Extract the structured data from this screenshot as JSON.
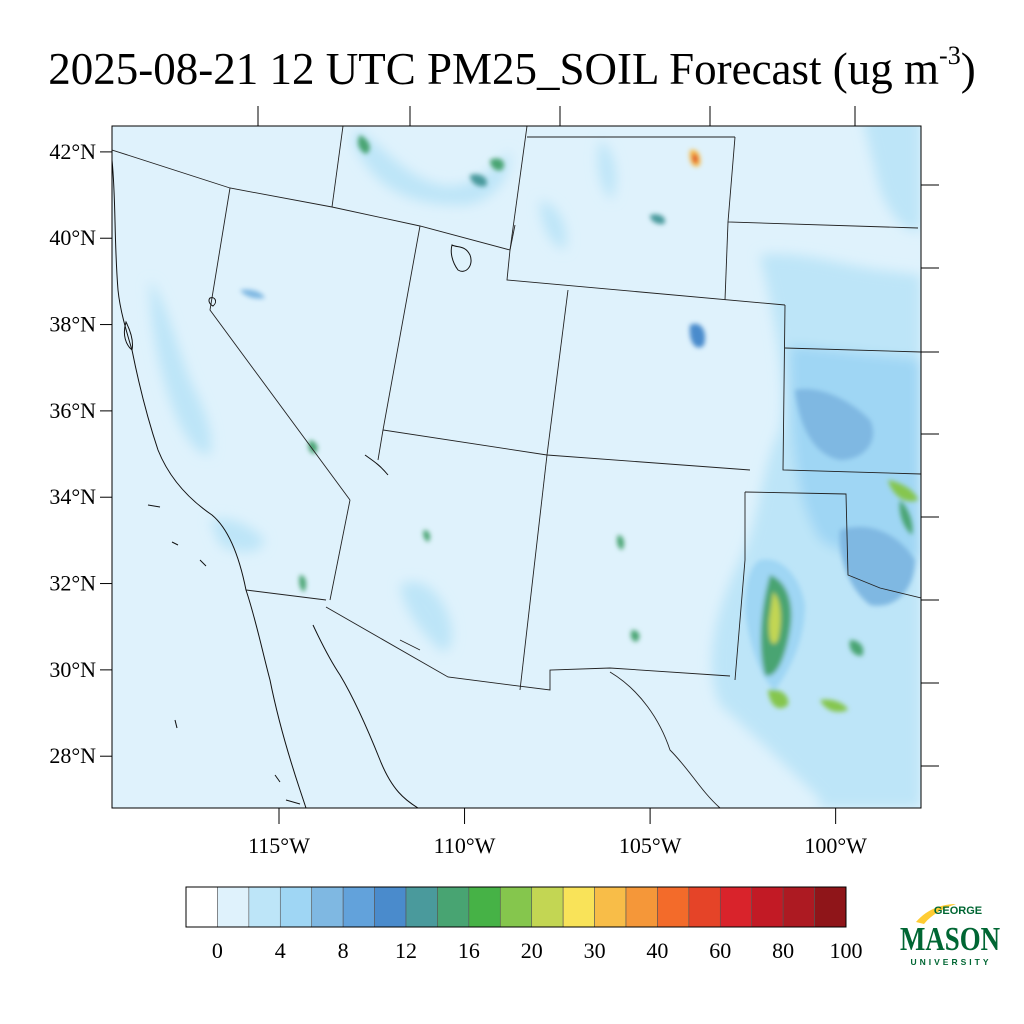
{
  "title": {
    "main": "2025-08-21 12 UTC PM25_SOIL Forecast (ug m",
    "superscript": "-3",
    "close": ")"
  },
  "map": {
    "extent": {
      "lon_min": -119.5,
      "lon_max": -97.7,
      "lat_min": 26.8,
      "lat_max": 42.6
    },
    "lat_ticks": [
      {
        "lat": 42,
        "label": "42°N"
      },
      {
        "lat": 40,
        "label": "40°N"
      },
      {
        "lat": 38,
        "label": "38°N"
      },
      {
        "lat": 36,
        "label": "36°N"
      },
      {
        "lat": 34,
        "label": "34°N"
      },
      {
        "lat": 32,
        "label": "32°N"
      },
      {
        "lat": 30,
        "label": "30°N"
      },
      {
        "lat": 28,
        "label": "28°N"
      }
    ],
    "lon_ticks": [
      {
        "lon": -115,
        "label": "115°W"
      },
      {
        "lon": -110,
        "label": "110°W"
      },
      {
        "lon": -105,
        "label": "105°W"
      },
      {
        "lon": -100,
        "label": "100°W"
      }
    ],
    "background_color": "#dff2fc",
    "boundary_color": "#222222"
  },
  "colorbar": {
    "colors": [
      "#ffffff",
      "#dff2fc",
      "#bde5f8",
      "#9fd6f4",
      "#7fb8e2",
      "#62a2db",
      "#4a8bcc",
      "#4a9a9c",
      "#48a472",
      "#46b246",
      "#85c64d",
      "#c3d653",
      "#f9e359",
      "#f8bd48",
      "#f59739",
      "#f36b2a",
      "#e54428",
      "#d9232b",
      "#c21a25",
      "#ad1a22",
      "#8f1519"
    ],
    "labels": [
      "0",
      "4",
      "8",
      "12",
      "16",
      "20",
      "30",
      "40",
      "60",
      "80",
      "100"
    ]
  },
  "logo": {
    "top": "GEORGE",
    "main": "MASON",
    "bottom": "UNIVERSITY",
    "color_green": "#006633",
    "color_gold": "#ffcc33"
  }
}
